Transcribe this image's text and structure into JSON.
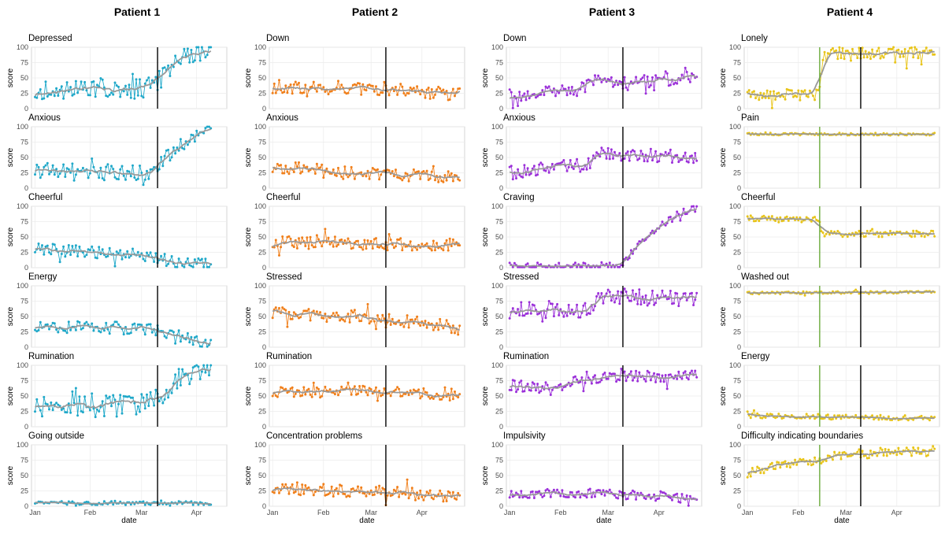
{
  "figure": {
    "shared_xlabel": "date",
    "shared_ylabel": "score",
    "y_ticks": [
      0,
      25,
      50,
      75,
      100
    ],
    "x_ticks": [
      "Jan",
      "Feb",
      "Mar",
      "Apr"
    ],
    "trend_color": "#999999",
    "vline_color": "#000000"
  },
  "chart_data": [
    {
      "patient": "Patient 1",
      "color": "#1fa8c9",
      "type": "line",
      "ylim": [
        0,
        100
      ],
      "xlim": [
        "2019-12-30",
        "2020-04-18"
      ],
      "vlines": [
        {
          "date": "2020-03-10",
          "color": "#000000"
        }
      ],
      "panels": [
        {
          "title": "Depressed",
          "shape": [
            {
              "date": "2020-01-01",
              "value": 30
            },
            {
              "date": "2020-03-01",
              "value": 32
            },
            {
              "date": "2020-03-10",
              "value": 45
            },
            {
              "date": "2020-03-25",
              "value": 85
            },
            {
              "date": "2020-04-09",
              "value": 95
            }
          ],
          "noise": 16
        },
        {
          "title": "Anxious",
          "shape": [
            {
              "date": "2020-01-01",
              "value": 30
            },
            {
              "date": "2020-03-05",
              "value": 25
            },
            {
              "date": "2020-03-10",
              "value": 35
            },
            {
              "date": "2020-03-25",
              "value": 75
            },
            {
              "date": "2020-04-09",
              "value": 98
            }
          ],
          "noise": 13
        },
        {
          "title": "Cheerful",
          "shape": [
            {
              "date": "2020-01-01",
              "value": 30
            },
            {
              "date": "2020-03-05",
              "value": 20
            },
            {
              "date": "2020-03-20",
              "value": 8
            },
            {
              "date": "2020-04-09",
              "value": 5
            }
          ],
          "noise": 10
        },
        {
          "title": "Energy",
          "shape": [
            {
              "date": "2020-01-01",
              "value": 32
            },
            {
              "date": "2020-03-01",
              "value": 32
            },
            {
              "date": "2020-03-20",
              "value": 20
            },
            {
              "date": "2020-04-09",
              "value": 3
            }
          ],
          "noise": 10
        },
        {
          "title": "Rumination",
          "shape": [
            {
              "date": "2020-01-01",
              "value": 30
            },
            {
              "date": "2020-03-01",
              "value": 35
            },
            {
              "date": "2020-03-10",
              "value": 45
            },
            {
              "date": "2020-03-25",
              "value": 85
            },
            {
              "date": "2020-04-09",
              "value": 98
            }
          ],
          "noise": 18
        },
        {
          "title": "Going outside",
          "shape": [
            {
              "date": "2020-01-01",
              "value": 5
            },
            {
              "date": "2020-04-09",
              "value": 5
            }
          ],
          "noise": 3
        }
      ]
    },
    {
      "patient": "Patient 2",
      "color": "#f07f1a",
      "type": "line",
      "ylim": [
        0,
        100
      ],
      "xlim": [
        "2019-12-30",
        "2020-04-27"
      ],
      "vlines": [
        {
          "date": "2020-03-10",
          "color": "#000000"
        }
      ],
      "panels": [
        {
          "title": "Down",
          "shape": [
            {
              "date": "2020-01-01",
              "value": 36
            },
            {
              "date": "2020-03-10",
              "value": 33
            },
            {
              "date": "2020-04-24",
              "value": 22
            }
          ],
          "noise": 11
        },
        {
          "title": "Anxious",
          "shape": [
            {
              "date": "2020-01-01",
              "value": 35
            },
            {
              "date": "2020-03-10",
              "value": 22
            },
            {
              "date": "2020-04-24",
              "value": 18
            }
          ],
          "noise": 10
        },
        {
          "title": "Cheerful",
          "shape": [
            {
              "date": "2020-01-01",
              "value": 42
            },
            {
              "date": "2020-04-24",
              "value": 37
            }
          ],
          "noise": 11
        },
        {
          "title": "Stressed",
          "shape": [
            {
              "date": "2020-01-01",
              "value": 55
            },
            {
              "date": "2020-03-10",
              "value": 48
            },
            {
              "date": "2020-04-24",
              "value": 30
            }
          ],
          "noise": 11
        },
        {
          "title": "Rumination",
          "shape": [
            {
              "date": "2020-01-01",
              "value": 55
            },
            {
              "date": "2020-03-10",
              "value": 58
            },
            {
              "date": "2020-04-24",
              "value": 50
            }
          ],
          "noise": 9
        },
        {
          "title": "Concentration problems",
          "shape": [
            {
              "date": "2020-01-01",
              "value": 28
            },
            {
              "date": "2020-03-10",
              "value": 24
            },
            {
              "date": "2020-04-24",
              "value": 14
            }
          ],
          "noise": 10
        }
      ]
    },
    {
      "patient": "Patient 3",
      "color": "#9b30d9",
      "type": "line",
      "ylim": [
        0,
        100
      ],
      "xlim": [
        "2019-12-30",
        "2020-04-27"
      ],
      "vlines": [
        {
          "date": "2020-03-10",
          "color": "#000000"
        }
      ],
      "panels": [
        {
          "title": "Down",
          "shape": [
            {
              "date": "2020-01-01",
              "value": 22
            },
            {
              "date": "2020-02-10",
              "value": 28
            },
            {
              "date": "2020-02-20",
              "value": 45
            },
            {
              "date": "2020-03-10",
              "value": 40
            },
            {
              "date": "2020-04-24",
              "value": 55
            }
          ],
          "noise": 12
        },
        {
          "title": "Anxious",
          "shape": [
            {
              "date": "2020-01-01",
              "value": 25
            },
            {
              "date": "2020-02-15",
              "value": 38
            },
            {
              "date": "2020-02-25",
              "value": 58
            },
            {
              "date": "2020-03-10",
              "value": 55
            },
            {
              "date": "2020-04-24",
              "value": 50
            }
          ],
          "noise": 11
        },
        {
          "title": "Craving",
          "shape": [
            {
              "date": "2020-01-01",
              "value": 2
            },
            {
              "date": "2020-03-08",
              "value": 2
            },
            {
              "date": "2020-03-20",
              "value": 40
            },
            {
              "date": "2020-04-10",
              "value": 85
            },
            {
              "date": "2020-04-24",
              "value": 98
            }
          ],
          "noise": 6
        },
        {
          "title": "Stressed",
          "shape": [
            {
              "date": "2020-01-01",
              "value": 60
            },
            {
              "date": "2020-02-15",
              "value": 62
            },
            {
              "date": "2020-03-01",
              "value": 82
            },
            {
              "date": "2020-04-24",
              "value": 80
            }
          ],
          "noise": 14
        },
        {
          "title": "Rumination",
          "shape": [
            {
              "date": "2020-01-01",
              "value": 68
            },
            {
              "date": "2020-02-01",
              "value": 62
            },
            {
              "date": "2020-02-15",
              "value": 80
            },
            {
              "date": "2020-04-24",
              "value": 82
            }
          ],
          "noise": 10
        },
        {
          "title": "Impulsivity",
          "shape": [
            {
              "date": "2020-01-01",
              "value": 20
            },
            {
              "date": "2020-02-15",
              "value": 22
            },
            {
              "date": "2020-04-24",
              "value": 12
            }
          ],
          "noise": 8
        }
      ]
    },
    {
      "patient": "Patient 4",
      "color": "#e8c419",
      "type": "line",
      "ylim": [
        0,
        100
      ],
      "xlim": [
        "2019-12-30",
        "2020-04-27"
      ],
      "vlines": [
        {
          "date": "2020-02-14",
          "color": "#6aaa3a"
        },
        {
          "date": "2020-03-10",
          "color": "#000000"
        }
      ],
      "panels": [
        {
          "title": "Lonely",
          "shape": [
            {
              "date": "2020-01-01",
              "value": 22
            },
            {
              "date": "2020-02-13",
              "value": 22
            },
            {
              "date": "2020-02-16",
              "value": 85
            },
            {
              "date": "2020-02-25",
              "value": 90
            },
            {
              "date": "2020-04-24",
              "value": 92
            }
          ],
          "noise": 10
        },
        {
          "title": "Pain",
          "shape": [
            {
              "date": "2020-01-01",
              "value": 88
            },
            {
              "date": "2020-04-24",
              "value": 88
            }
          ],
          "noise": 2
        },
        {
          "title": "Cheerful",
          "shape": [
            {
              "date": "2020-01-01",
              "value": 80
            },
            {
              "date": "2020-02-13",
              "value": 78
            },
            {
              "date": "2020-02-16",
              "value": 55
            },
            {
              "date": "2020-04-24",
              "value": 55
            }
          ],
          "noise": 5
        },
        {
          "title": "Washed out",
          "shape": [
            {
              "date": "2020-01-01",
              "value": 88
            },
            {
              "date": "2020-04-24",
              "value": 90
            }
          ],
          "noise": 2
        },
        {
          "title": "Energy",
          "shape": [
            {
              "date": "2020-01-01",
              "value": 18
            },
            {
              "date": "2020-04-24",
              "value": 14
            }
          ],
          "noise": 4
        },
        {
          "title": "Difficulty indicating boundaries",
          "shape": [
            {
              "date": "2020-01-01",
              "value": 55
            },
            {
              "date": "2020-03-01",
              "value": 85
            },
            {
              "date": "2020-04-24",
              "value": 90
            }
          ],
          "noise": 8
        }
      ]
    }
  ]
}
